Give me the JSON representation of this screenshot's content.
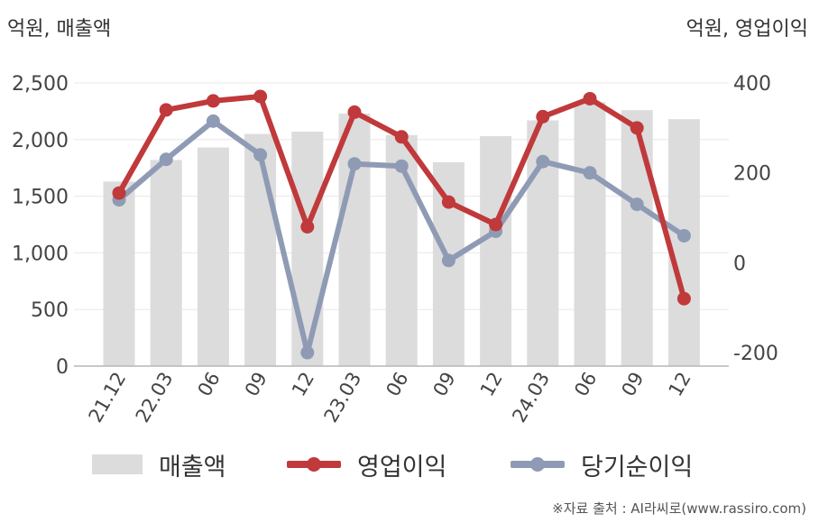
{
  "unit_left": "억원, 매출액",
  "unit_right": "억원, 영업이익",
  "source": "※자료 출처 : AI라씨로(www.rassiro.com)",
  "chart_data": {
    "type": "bar",
    "categories": [
      "21.12",
      "22.03",
      "06",
      "09",
      "12",
      "23.03",
      "06",
      "09",
      "12",
      "24.03",
      "06",
      "09",
      "12"
    ],
    "left_axis": {
      "ylim": [
        0,
        2500
      ],
      "ticks": [
        "0",
        "500",
        "1,000",
        "1,500",
        "2,000",
        "2,500"
      ],
      "tick_values": [
        0,
        500,
        1000,
        1500,
        2000,
        2500
      ]
    },
    "right_axis": {
      "ylim": [
        -230,
        400
      ],
      "ticks": [
        "-200",
        "0",
        "200",
        "400"
      ],
      "tick_values": [
        -200,
        0,
        200,
        400
      ]
    },
    "series": [
      {
        "name": "매출액",
        "kind": "bar",
        "axis": "left",
        "color": "#dcdcdc",
        "values": [
          1630,
          1820,
          1930,
          2050,
          2070,
          2230,
          2040,
          1800,
          2030,
          2170,
          2330,
          2260,
          2180
        ]
      },
      {
        "name": "영업이익",
        "kind": "line",
        "axis": "right",
        "color": "#c0393b",
        "values": [
          155,
          340,
          360,
          370,
          80,
          335,
          280,
          135,
          85,
          325,
          365,
          300,
          -80
        ]
      },
      {
        "name": "당기순이익",
        "kind": "line",
        "axis": "right",
        "color": "#8f9bb5",
        "values": [
          140,
          230,
          315,
          240,
          -200,
          220,
          215,
          5,
          70,
          225,
          200,
          130,
          60
        ]
      }
    ],
    "grid": true,
    "legend": "bottom"
  }
}
